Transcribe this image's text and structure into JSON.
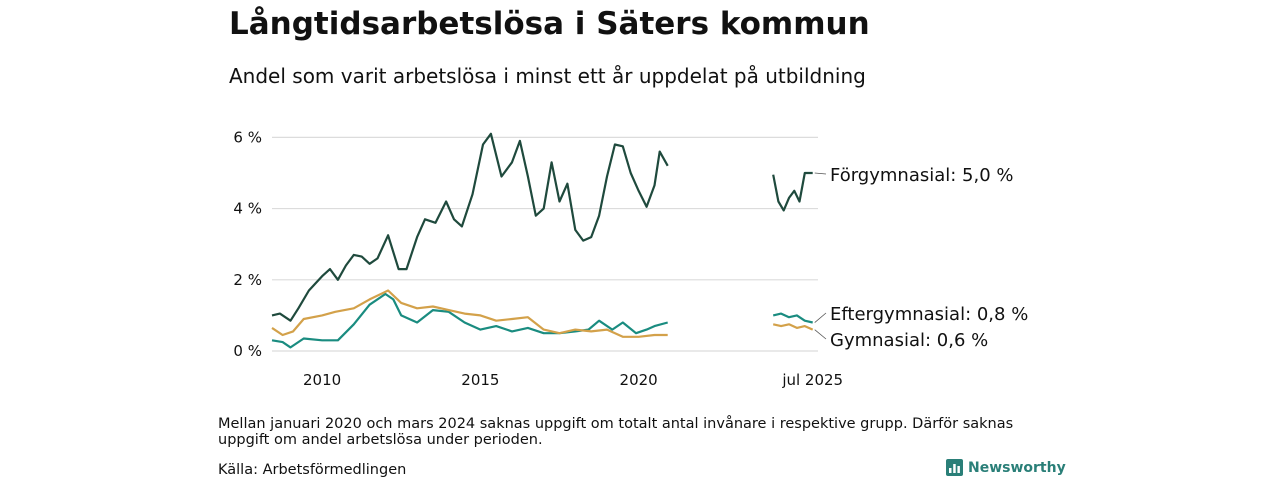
{
  "title": "Långtidsarbetslösa i Säters kommun",
  "subtitle": "Andel som varit arbetslösa i minst ett år uppdelat på utbildning",
  "note": "Mellan januari 2020 och mars 2024 saknas uppgift om totalt antal invånare i respektive grupp. Därför saknas uppgift om andel arbetslösa under perioden.",
  "source": "Källa: Arbetsförmedlingen",
  "brand": {
    "name": "Newsworthy",
    "icon": "bar-chart-logo-icon",
    "color": "#2a7f78"
  },
  "chart_data": {
    "type": "line",
    "title": "Långtidsarbetslösa i Säters kommun",
    "subtitle": "Andel som varit arbetslösa i minst ett år uppdelat på utbildning",
    "x_axis": {
      "type": "time",
      "range": [
        "2008-06",
        "2025-09"
      ],
      "ticks": [
        {
          "x": "2010-01",
          "label": "2010"
        },
        {
          "x": "2015-01",
          "label": "2015"
        },
        {
          "x": "2020-01",
          "label": "2020"
        },
        {
          "x": "2025-07",
          "label": "jul 2025"
        }
      ]
    },
    "y_axis": {
      "range": [
        0,
        6.6
      ],
      "ticks": [
        {
          "value": 0,
          "label": "0 %"
        },
        {
          "value": 2,
          "label": "2 %"
        },
        {
          "value": 4,
          "label": "4 %"
        },
        {
          "value": 6,
          "label": "6 %"
        }
      ],
      "grid": true
    },
    "legend": "direct labels at right end of lines",
    "series": [
      {
        "name": "Förgymnasial",
        "label": "Förgymnasial: 5,0 %",
        "color": "#1f4a3d",
        "segments": [
          [
            [
              "2008-06",
              1.0
            ],
            [
              "2008-09",
              1.05
            ],
            [
              "2009-01",
              0.85
            ],
            [
              "2009-04",
              1.2
            ],
            [
              "2009-08",
              1.7
            ],
            [
              "2010-01",
              2.1
            ],
            [
              "2010-04",
              2.3
            ],
            [
              "2010-07",
              2.0
            ],
            [
              "2010-10",
              2.4
            ],
            [
              "2011-01",
              2.7
            ],
            [
              "2011-04",
              2.65
            ],
            [
              "2011-07",
              2.45
            ],
            [
              "2011-10",
              2.6
            ],
            [
              "2012-02",
              3.25
            ],
            [
              "2012-06",
              2.3
            ],
            [
              "2012-09",
              2.3
            ],
            [
              "2013-01",
              3.2
            ],
            [
              "2013-04",
              3.7
            ],
            [
              "2013-08",
              3.6
            ],
            [
              "2013-12",
              4.2
            ],
            [
              "2014-03",
              3.7
            ],
            [
              "2014-06",
              3.5
            ],
            [
              "2014-10",
              4.4
            ],
            [
              "2015-02",
              5.8
            ],
            [
              "2015-05",
              6.1
            ],
            [
              "2015-09",
              4.9
            ],
            [
              "2016-01",
              5.3
            ],
            [
              "2016-04",
              5.9
            ],
            [
              "2016-07",
              4.9
            ],
            [
              "2016-10",
              3.8
            ],
            [
              "2017-01",
              4.0
            ],
            [
              "2017-04",
              5.3
            ],
            [
              "2017-07",
              4.2
            ],
            [
              "2017-10",
              4.7
            ],
            [
              "2018-01",
              3.4
            ],
            [
              "2018-04",
              3.1
            ],
            [
              "2018-07",
              3.2
            ],
            [
              "2018-10",
              3.8
            ],
            [
              "2019-01",
              4.9
            ],
            [
              "2019-04",
              5.8
            ],
            [
              "2019-07",
              5.75
            ],
            [
              "2019-10",
              5.0
            ],
            [
              "2020-01",
              4.5
            ],
            [
              "2020-04",
              4.05
            ],
            [
              "2020-07",
              4.65
            ],
            [
              "2020-09",
              5.6
            ],
            [
              "2020-12",
              5.2
            ]
          ],
          [
            [
              "2024-04",
              4.95
            ],
            [
              "2024-06",
              4.2
            ],
            [
              "2024-08",
              3.95
            ],
            [
              "2024-10",
              4.3
            ],
            [
              "2024-12",
              4.5
            ],
            [
              "2025-02",
              4.2
            ],
            [
              "2025-04",
              5.0
            ],
            [
              "2025-07",
              5.0
            ]
          ]
        ]
      },
      {
        "name": "Eftergymnasial",
        "label": "Eftergymnasial: 0,8 %",
        "color": "#1a8c80",
        "segments": [
          [
            [
              "2008-06",
              0.3
            ],
            [
              "2008-10",
              0.25
            ],
            [
              "2009-01",
              0.1
            ],
            [
              "2009-06",
              0.35
            ],
            [
              "2010-01",
              0.3
            ],
            [
              "2010-07",
              0.3
            ],
            [
              "2011-01",
              0.75
            ],
            [
              "2011-07",
              1.3
            ],
            [
              "2012-01",
              1.6
            ],
            [
              "2012-04",
              1.45
            ],
            [
              "2012-07",
              1.0
            ],
            [
              "2013-01",
              0.8
            ],
            [
              "2013-07",
              1.15
            ],
            [
              "2014-01",
              1.1
            ],
            [
              "2014-07",
              0.8
            ],
            [
              "2015-01",
              0.6
            ],
            [
              "2015-07",
              0.7
            ],
            [
              "2016-01",
              0.55
            ],
            [
              "2016-07",
              0.65
            ],
            [
              "2017-01",
              0.5
            ],
            [
              "2017-07",
              0.5
            ],
            [
              "2018-01",
              0.55
            ],
            [
              "2018-06",
              0.6
            ],
            [
              "2018-10",
              0.85
            ],
            [
              "2019-03",
              0.6
            ],
            [
              "2019-07",
              0.8
            ],
            [
              "2019-12",
              0.5
            ],
            [
              "2020-04",
              0.6
            ],
            [
              "2020-07",
              0.7
            ],
            [
              "2020-12",
              0.8
            ]
          ],
          [
            [
              "2024-04",
              1.0
            ],
            [
              "2024-07",
              1.05
            ],
            [
              "2024-10",
              0.95
            ],
            [
              "2025-01",
              1.0
            ],
            [
              "2025-04",
              0.85
            ],
            [
              "2025-07",
              0.8
            ]
          ]
        ]
      },
      {
        "name": "Gymnasial",
        "label": "Gymnasial: 0,6 %",
        "color": "#d3a14a",
        "segments": [
          [
            [
              "2008-06",
              0.65
            ],
            [
              "2008-10",
              0.45
            ],
            [
              "2009-02",
              0.55
            ],
            [
              "2009-06",
              0.9
            ],
            [
              "2010-01",
              1.0
            ],
            [
              "2010-06",
              1.1
            ],
            [
              "2011-01",
              1.2
            ],
            [
              "2011-07",
              1.45
            ],
            [
              "2012-02",
              1.7
            ],
            [
              "2012-07",
              1.35
            ],
            [
              "2013-01",
              1.2
            ],
            [
              "2013-07",
              1.25
            ],
            [
              "2014-01",
              1.15
            ],
            [
              "2014-07",
              1.05
            ],
            [
              "2015-01",
              1.0
            ],
            [
              "2015-07",
              0.85
            ],
            [
              "2016-01",
              0.9
            ],
            [
              "2016-07",
              0.95
            ],
            [
              "2017-01",
              0.6
            ],
            [
              "2017-07",
              0.5
            ],
            [
              "2018-01",
              0.6
            ],
            [
              "2018-07",
              0.55
            ],
            [
              "2019-01",
              0.6
            ],
            [
              "2019-07",
              0.4
            ],
            [
              "2020-01",
              0.4
            ],
            [
              "2020-07",
              0.45
            ],
            [
              "2020-12",
              0.45
            ]
          ],
          [
            [
              "2024-04",
              0.75
            ],
            [
              "2024-07",
              0.7
            ],
            [
              "2024-10",
              0.75
            ],
            [
              "2025-01",
              0.65
            ],
            [
              "2025-04",
              0.7
            ],
            [
              "2025-07",
              0.6
            ]
          ]
        ]
      }
    ]
  }
}
